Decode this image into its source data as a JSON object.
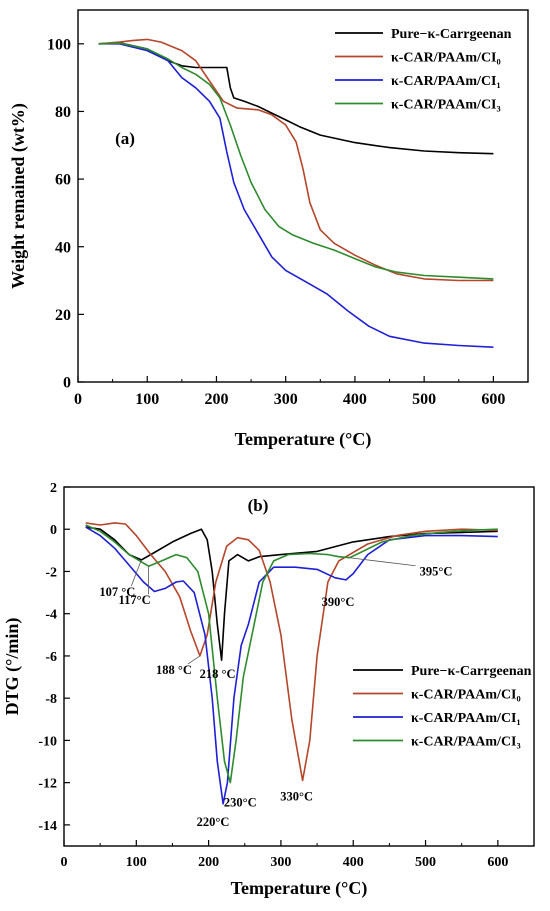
{
  "colors": {
    "pure": "#000000",
    "ci0": "#b5462b",
    "ci1": "#1f1fd6",
    "ci3": "#2e8b2e",
    "axis": "#000000"
  },
  "chart_data": [
    {
      "type": "line",
      "panel_label": "(a)",
      "xlabel": "Temperature (°C)",
      "ylabel": "Weight remained (wt%)",
      "xlim": [
        0,
        650
      ],
      "ylim": [
        0,
        110
      ],
      "x_ticks": [
        0,
        100,
        200,
        300,
        400,
        500,
        600
      ],
      "y_ticks": [
        0,
        20,
        40,
        60,
        80,
        100
      ],
      "legend_position": "top-right",
      "series": [
        {
          "name": "Pure−κ-Carrgeenan",
          "color_key": "pure",
          "points": [
            [
              30,
              100
            ],
            [
              60,
              100.3
            ],
            [
              100,
              98.5
            ],
            [
              130,
              95
            ],
            [
              150,
              93.5
            ],
            [
              170,
              93
            ],
            [
              190,
              93
            ],
            [
              210,
              93
            ],
            [
              215,
              93
            ],
            [
              220,
              87
            ],
            [
              225,
              84
            ],
            [
              240,
              83
            ],
            [
              260,
              81.5
            ],
            [
              280,
              79.5
            ],
            [
              300,
              77.5
            ],
            [
              320,
              75.5
            ],
            [
              350,
              73
            ],
            [
              400,
              70.8
            ],
            [
              450,
              69.3
            ],
            [
              500,
              68.3
            ],
            [
              550,
              67.8
            ],
            [
              600,
              67.5
            ]
          ]
        },
        {
          "name": "κ-CAR/PAAm/CI₀",
          "color_key": "ci0",
          "points": [
            [
              30,
              100
            ],
            [
              60,
              100.5
            ],
            [
              80,
              101
            ],
            [
              100,
              101.3
            ],
            [
              120,
              100.5
            ],
            [
              150,
              98
            ],
            [
              170,
              95
            ],
            [
              190,
              89
            ],
            [
              210,
              83
            ],
            [
              230,
              81
            ],
            [
              260,
              80.5
            ],
            [
              280,
              79
            ],
            [
              300,
              76
            ],
            [
              315,
              71
            ],
            [
              325,
              63
            ],
            [
              335,
              53
            ],
            [
              350,
              45
            ],
            [
              370,
              41
            ],
            [
              400,
              37.5
            ],
            [
              430,
              34.5
            ],
            [
              460,
              32
            ],
            [
              500,
              30.5
            ],
            [
              550,
              30
            ],
            [
              600,
              30
            ]
          ]
        },
        {
          "name": "κ-CAR/PAAm/CI₁",
          "color_key": "ci1",
          "points": [
            [
              30,
              100
            ],
            [
              60,
              100
            ],
            [
              100,
              98
            ],
            [
              130,
              95
            ],
            [
              150,
              90
            ],
            [
              170,
              87
            ],
            [
              190,
              83
            ],
            [
              205,
              78
            ],
            [
              215,
              68
            ],
            [
              225,
              59
            ],
            [
              240,
              51
            ],
            [
              260,
              44
            ],
            [
              280,
              37
            ],
            [
              300,
              33
            ],
            [
              330,
              29.5
            ],
            [
              360,
              26
            ],
            [
              390,
              21
            ],
            [
              420,
              16.5
            ],
            [
              450,
              13.5
            ],
            [
              500,
              11.5
            ],
            [
              550,
              10.8
            ],
            [
              600,
              10.3
            ]
          ]
        },
        {
          "name": "κ-CAR/PAAm/CI₃",
          "color_key": "ci3",
          "points": [
            [
              30,
              100
            ],
            [
              60,
              100.2
            ],
            [
              100,
              98.5
            ],
            [
              130,
              95.5
            ],
            [
              150,
              93
            ],
            [
              170,
              91
            ],
            [
              190,
              88
            ],
            [
              205,
              84
            ],
            [
              220,
              76
            ],
            [
              235,
              67
            ],
            [
              250,
              59
            ],
            [
              270,
              51
            ],
            [
              290,
              46
            ],
            [
              310,
              43.5
            ],
            [
              340,
              41
            ],
            [
              370,
              39
            ],
            [
              400,
              36.5
            ],
            [
              430,
              34
            ],
            [
              460,
              32.5
            ],
            [
              500,
              31.5
            ],
            [
              550,
              31
            ],
            [
              600,
              30.5
            ]
          ]
        }
      ]
    },
    {
      "type": "line",
      "panel_label": "(b)",
      "xlabel": "Temperature (°C)",
      "ylabel": "DTG (°/min)",
      "xlim": [
        0,
        650
      ],
      "ylim": [
        -15,
        2
      ],
      "x_ticks": [
        0,
        100,
        200,
        300,
        400,
        500,
        600
      ],
      "y_ticks": [
        2,
        0,
        -2,
        -4,
        -6,
        -8,
        -10,
        -12,
        -14
      ],
      "legend_position": "bottom-right",
      "series": [
        {
          "name": "Pure−κ-Carrgeenan",
          "color_key": "pure",
          "points": [
            [
              30,
              0.1
            ],
            [
              50,
              0
            ],
            [
              70,
              -0.5
            ],
            [
              90,
              -1.2
            ],
            [
              107,
              -1.45
            ],
            [
              125,
              -1.1
            ],
            [
              150,
              -0.6
            ],
            [
              175,
              -0.2
            ],
            [
              190,
              0
            ],
            [
              198,
              -0.5
            ],
            [
              205,
              -2
            ],
            [
              212,
              -4.5
            ],
            [
              218,
              -6.2
            ],
            [
              222,
              -4
            ],
            [
              228,
              -1.5
            ],
            [
              240,
              -1.2
            ],
            [
              255,
              -1.5
            ],
            [
              270,
              -1.3
            ],
            [
              300,
              -1.2
            ],
            [
              350,
              -1.05
            ],
            [
              400,
              -0.6
            ],
            [
              450,
              -0.35
            ],
            [
              500,
              -0.2
            ],
            [
              550,
              -0.15
            ],
            [
              600,
              -0.1
            ]
          ]
        },
        {
          "name": "κ-CAR/PAAm/CI₀",
          "color_key": "ci0",
          "points": [
            [
              30,
              0.3
            ],
            [
              50,
              0.2
            ],
            [
              70,
              0.3
            ],
            [
              85,
              0.25
            ],
            [
              100,
              -0.3
            ],
            [
              120,
              -1.2
            ],
            [
              140,
              -2
            ],
            [
              160,
              -3.2
            ],
            [
              175,
              -4.8
            ],
            [
              188,
              -6
            ],
            [
              198,
              -5
            ],
            [
              210,
              -2.5
            ],
            [
              225,
              -0.8
            ],
            [
              240,
              -0.4
            ],
            [
              255,
              -0.5
            ],
            [
              270,
              -1
            ],
            [
              285,
              -2.5
            ],
            [
              300,
              -5
            ],
            [
              315,
              -9
            ],
            [
              330,
              -11.9
            ],
            [
              340,
              -10
            ],
            [
              350,
              -6
            ],
            [
              365,
              -2.5
            ],
            [
              380,
              -1.5
            ],
            [
              395,
              -1.2
            ],
            [
              420,
              -0.7
            ],
            [
              460,
              -0.3
            ],
            [
              500,
              -0.1
            ],
            [
              550,
              0
            ],
            [
              600,
              -0.05
            ]
          ]
        },
        {
          "name": "κ-CAR/PAAm/CI₁",
          "color_key": "ci1",
          "points": [
            [
              30,
              0.1
            ],
            [
              50,
              -0.3
            ],
            [
              70,
              -0.9
            ],
            [
              90,
              -1.7
            ],
            [
              110,
              -2.5
            ],
            [
              125,
              -2.95
            ],
            [
              140,
              -2.8
            ],
            [
              155,
              -2.5
            ],
            [
              165,
              -2.45
            ],
            [
              180,
              -3
            ],
            [
              195,
              -5
            ],
            [
              205,
              -8
            ],
            [
              212,
              -11
            ],
            [
              220,
              -13
            ],
            [
              226,
              -12
            ],
            [
              235,
              -8
            ],
            [
              245,
              -5.5
            ],
            [
              255,
              -4.5
            ],
            [
              270,
              -2.5
            ],
            [
              290,
              -1.8
            ],
            [
              320,
              -1.8
            ],
            [
              350,
              -1.9
            ],
            [
              375,
              -2.3
            ],
            [
              390,
              -2.4
            ],
            [
              400,
              -2.1
            ],
            [
              420,
              -1.2
            ],
            [
              450,
              -0.5
            ],
            [
              500,
              -0.3
            ],
            [
              550,
              -0.3
            ],
            [
              600,
              -0.35
            ]
          ]
        },
        {
          "name": "κ-CAR/PAAm/CI₃",
          "color_key": "ci3",
          "points": [
            [
              30,
              0.2
            ],
            [
              50,
              -0.1
            ],
            [
              70,
              -0.6
            ],
            [
              90,
              -1.2
            ],
            [
              117,
              -1.75
            ],
            [
              135,
              -1.5
            ],
            [
              155,
              -1.2
            ],
            [
              170,
              -1.35
            ],
            [
              185,
              -2
            ],
            [
              200,
              -4
            ],
            [
              212,
              -8
            ],
            [
              222,
              -11
            ],
            [
              230,
              -12
            ],
            [
              238,
              -10
            ],
            [
              248,
              -7
            ],
            [
              260,
              -5
            ],
            [
              275,
              -2.5
            ],
            [
              290,
              -1.5
            ],
            [
              310,
              -1.2
            ],
            [
              340,
              -1.15
            ],
            [
              365,
              -1.2
            ],
            [
              380,
              -1.3
            ],
            [
              395,
              -1.35
            ],
            [
              410,
              -1.1
            ],
            [
              440,
              -0.6
            ],
            [
              480,
              -0.3
            ],
            [
              520,
              -0.15
            ],
            [
              560,
              -0.05
            ],
            [
              600,
              0
            ]
          ]
        }
      ],
      "annotations": [
        {
          "text": "107 °C",
          "x": 107,
          "y": -1.45,
          "series": "pure"
        },
        {
          "text": "117°C",
          "x": 117,
          "y": -1.75,
          "series": "ci3"
        },
        {
          "text": "188 °C",
          "x": 188,
          "y": -6,
          "series": "ci0"
        },
        {
          "text": "218 °C",
          "x": 218,
          "y": -6.2,
          "series": "pure"
        },
        {
          "text": "230°C",
          "x": 230,
          "y": -12,
          "series": "ci3"
        },
        {
          "text": "220°C",
          "x": 220,
          "y": -13,
          "series": "ci1"
        },
        {
          "text": "330°C",
          "x": 330,
          "y": -11.9,
          "series": "ci0"
        },
        {
          "text": "390°C",
          "x": 390,
          "y": -2.4,
          "series": "ci1"
        },
        {
          "text": "395°C",
          "x": 395,
          "y": -1.35,
          "series": "ci3"
        }
      ]
    }
  ]
}
